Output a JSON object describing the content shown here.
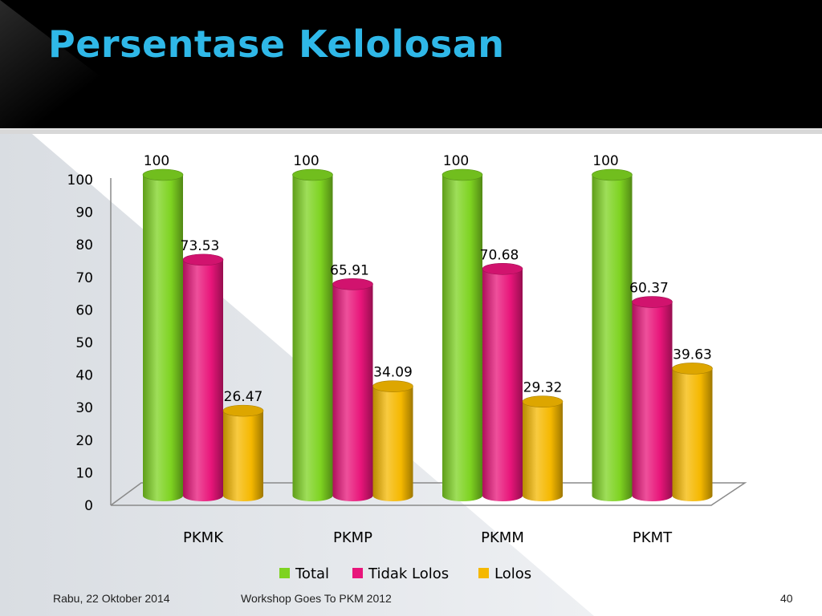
{
  "slide": {
    "title": "Persentase Kelolosan",
    "footer_date": "Rabu, 22 Oktober 2014",
    "footer_event": "Workshop Goes To PKM 2012",
    "page_number": "40"
  },
  "colors": {
    "title": "#2fb8e8",
    "header_bg": "#000000",
    "total": "#7ed321",
    "tidak_lolos": "#e8157a",
    "lolos": "#f5b800"
  },
  "chart_data": {
    "type": "bar",
    "style": "3d-cylinder",
    "categories": [
      "PKMK",
      "PKMP",
      "PKMM",
      "PKMT"
    ],
    "series": [
      {
        "name": "Total",
        "color": "#7ed321",
        "values": [
          100,
          100,
          100,
          100
        ]
      },
      {
        "name": "Tidak Lolos",
        "color": "#e8157a",
        "values": [
          73.53,
          65.91,
          70.68,
          60.37
        ]
      },
      {
        "name": "Lolos",
        "color": "#f5b800",
        "values": [
          26.47,
          34.09,
          29.32,
          39.63
        ]
      }
    ],
    "y_ticks": [
      "0",
      "10",
      "20",
      "30",
      "40",
      "50",
      "60",
      "70",
      "80",
      "90",
      "100"
    ],
    "ylim": [
      0,
      100
    ],
    "grid": false,
    "legend_position": "bottom",
    "data_labels": [
      [
        "100",
        "100",
        "100",
        "100"
      ],
      [
        "73.53",
        "65.91",
        "70.68",
        "60.37"
      ],
      [
        "26.47",
        "34.09",
        "29.32",
        "39.63"
      ]
    ]
  }
}
